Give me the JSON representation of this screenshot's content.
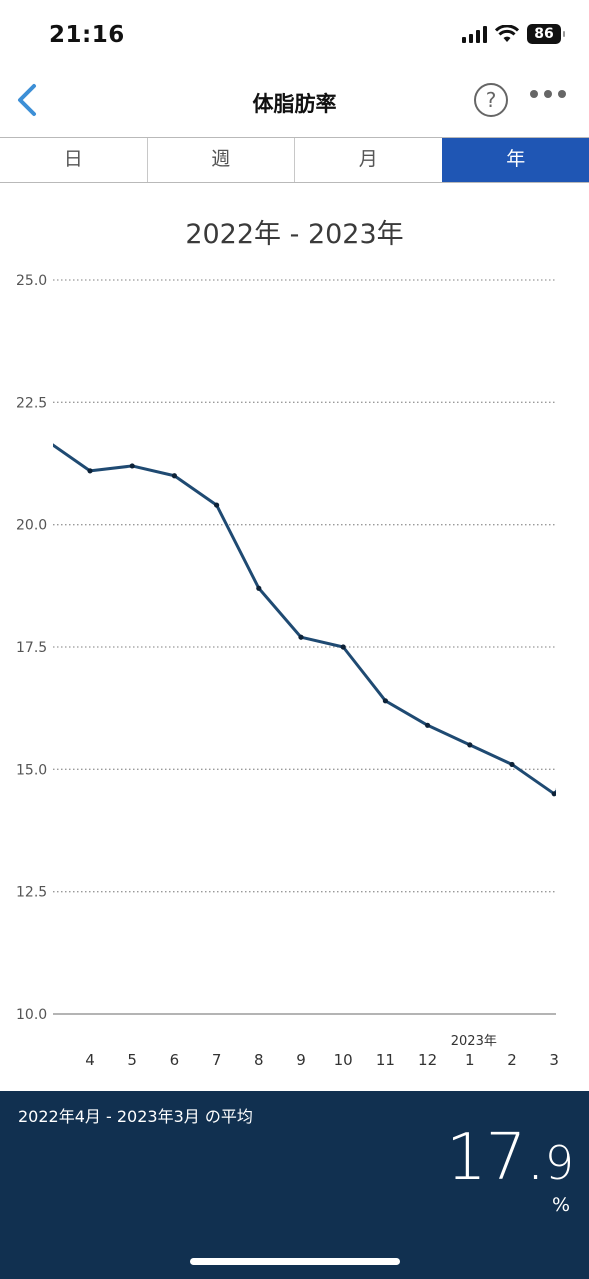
{
  "status": {
    "time": "21:16",
    "battery": "86"
  },
  "header": {
    "title": "体脂肪率",
    "help_label": "?"
  },
  "tabs": [
    {
      "label": "日",
      "active": false
    },
    {
      "label": "週",
      "active": false
    },
    {
      "label": "月",
      "active": false
    },
    {
      "label": "年",
      "active": true
    }
  ],
  "chart_data": {
    "type": "line",
    "title": "2022年 - 2023年",
    "ylim": [
      10.0,
      25.0
    ],
    "y_ticks": [
      "25.0",
      "22.5",
      "20.0",
      "17.5",
      "15.0",
      "12.5",
      "10.0"
    ],
    "x_ticks": [
      "4",
      "5",
      "6",
      "7",
      "8",
      "9",
      "10",
      "11",
      "12",
      "1",
      "2",
      "3"
    ],
    "year_marker": {
      "label": "2023年",
      "at_tick": "1"
    },
    "grid": true,
    "series": [
      {
        "values": [
          21.7,
          21.1,
          21.2,
          21.0,
          20.4,
          18.7,
          17.7,
          17.5,
          16.4,
          15.9,
          15.5,
          15.1,
          14.5,
          14.6
        ]
      }
    ],
    "x_positions": [
      3.0,
      4,
      5,
      6,
      7,
      8,
      9,
      10,
      11,
      12,
      13,
      14,
      15,
      15.1
    ],
    "line_color": "#1f4a72"
  },
  "summary": {
    "label": "2022年4月 - 2023年3月 の平均",
    "value_int": "17.",
    "value_dec": "9",
    "unit": "%"
  },
  "colors": {
    "accent": "#1f56b4",
    "footer_bg": "#113050",
    "back_arrow": "#3d8fd6"
  }
}
